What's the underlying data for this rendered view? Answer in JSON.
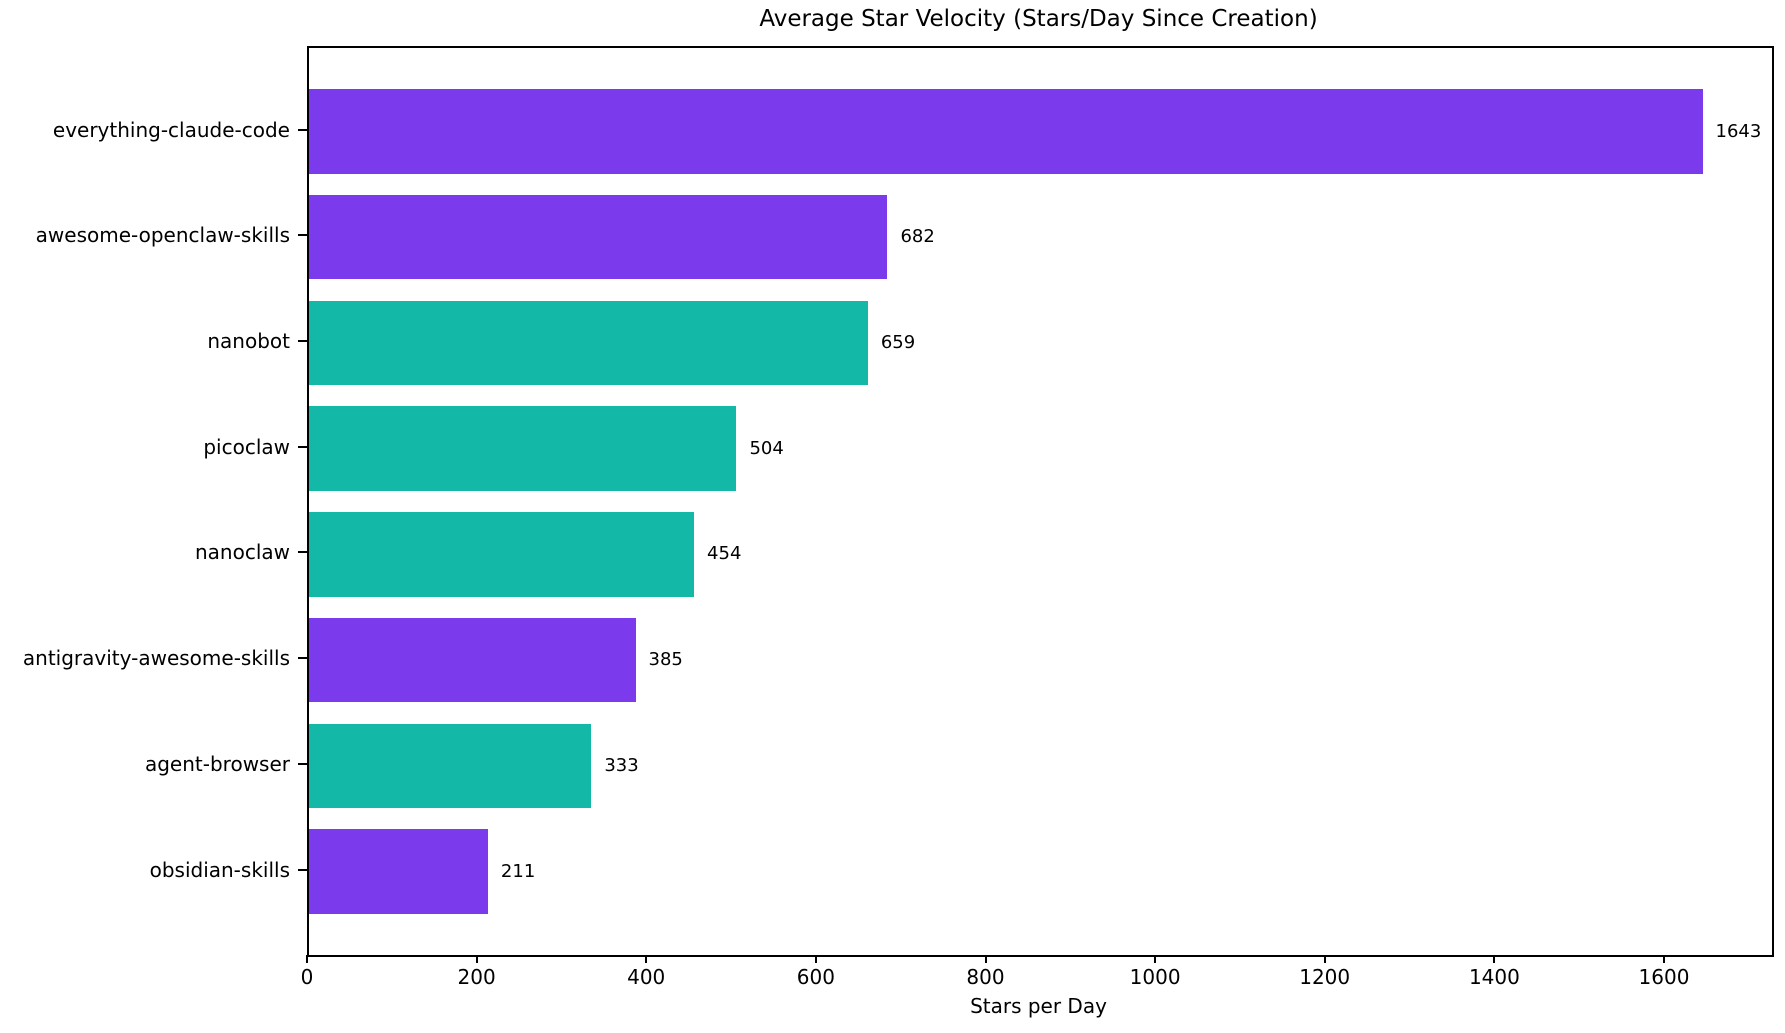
{
  "figure": {
    "background": "#FFFFFF",
    "text_color": "#000000"
  },
  "chart_data": {
    "type": "bar",
    "orientation": "horizontal",
    "title": "Average Star Velocity (Stars/Day Since Creation)",
    "xlabel": "Stars per Day",
    "ylabel": "",
    "xlim": [
      0,
      1725
    ],
    "xticks": [
      {
        "value": 0,
        "label": "0"
      },
      {
        "value": 200,
        "label": "200"
      },
      {
        "value": 400,
        "label": "400"
      },
      {
        "value": 600,
        "label": "600"
      },
      {
        "value": 800,
        "label": "800"
      },
      {
        "value": 1000,
        "label": "1000"
      },
      {
        "value": 1200,
        "label": "1200"
      },
      {
        "value": 1400,
        "label": "1400"
      },
      {
        "value": 1600,
        "label": "1600"
      }
    ],
    "grid": false,
    "legend": false,
    "bar_colors": {
      "purple": "#7C3AED",
      "teal": "#14B8A6"
    },
    "categories": [
      "everything-claude-code",
      "awesome-openclaw-skills",
      "nanobot",
      "picoclaw",
      "nanoclaw",
      "antigravity-awesome-skills",
      "agent-browser",
      "obsidian-skills"
    ],
    "bars": [
      {
        "category": "everything-claude-code",
        "value": 1643,
        "value_label": "1643",
        "color": "#7C3AED"
      },
      {
        "category": "awesome-openclaw-skills",
        "value": 682,
        "value_label": "682",
        "color": "#7C3AED"
      },
      {
        "category": "nanobot",
        "value": 659,
        "value_label": "659",
        "color": "#14B8A6"
      },
      {
        "category": "picoclaw",
        "value": 504,
        "value_label": "504",
        "color": "#14B8A6"
      },
      {
        "category": "nanoclaw",
        "value": 454,
        "value_label": "454",
        "color": "#14B8A6"
      },
      {
        "category": "antigravity-awesome-skills",
        "value": 385,
        "value_label": "385",
        "color": "#7C3AED"
      },
      {
        "category": "agent-browser",
        "value": 333,
        "value_label": "333",
        "color": "#14B8A6"
      },
      {
        "category": "obsidian-skills",
        "value": 211,
        "value_label": "211",
        "color": "#7C3AED"
      }
    ]
  }
}
